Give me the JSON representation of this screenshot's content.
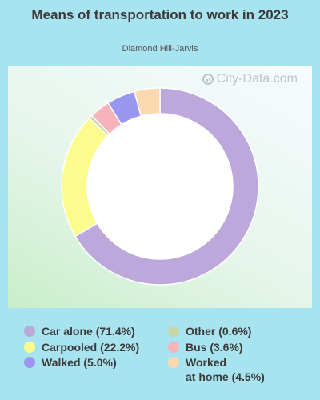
{
  "title": "Means of transportation to work in 2023",
  "subtitle": "Diamond Hill-Jarvis",
  "watermark": "City-Data.com",
  "chart_data": {
    "type": "pie",
    "donut": true,
    "title": "Means of transportation to work in 2023",
    "subtitle": "Diamond Hill-Jarvis",
    "series": [
      {
        "name": "Car alone",
        "value": 71.4,
        "color": "#bca8da",
        "label": "Car alone (71.4%)"
      },
      {
        "name": "Carpooled",
        "value": 22.2,
        "color": "#fdfb8d",
        "label": "Carpooled (22.2%)"
      },
      {
        "name": "Other",
        "value": 0.6,
        "color": "#c4d8a8",
        "label": "Other (0.6%)"
      },
      {
        "name": "Bus",
        "value": 3.6,
        "color": "#f6b4ba",
        "label": "Bus (3.6%)"
      },
      {
        "name": "Walked",
        "value": 5.0,
        "color": "#9b97f0",
        "label": "Walked (5.0%)"
      },
      {
        "name": "Worked at home",
        "value": 4.5,
        "color": "#fcd8b0",
        "label": "Worked\nat home (4.5%)"
      }
    ],
    "legend": [
      {
        "label": "Car alone (71.4%)",
        "color": "#bca8da"
      },
      {
        "label": "Carpooled (22.2%)",
        "color": "#fdfb8d"
      },
      {
        "label": "Walked (5.0%)",
        "color": "#9b97f0"
      },
      {
        "label": "Other (0.6%)",
        "color": "#c4d8a8"
      },
      {
        "label": "Bus (3.6%)",
        "color": "#f6b4ba"
      },
      {
        "label": "Worked\nat home (4.5%)",
        "color": "#fcd8b0"
      }
    ]
  }
}
